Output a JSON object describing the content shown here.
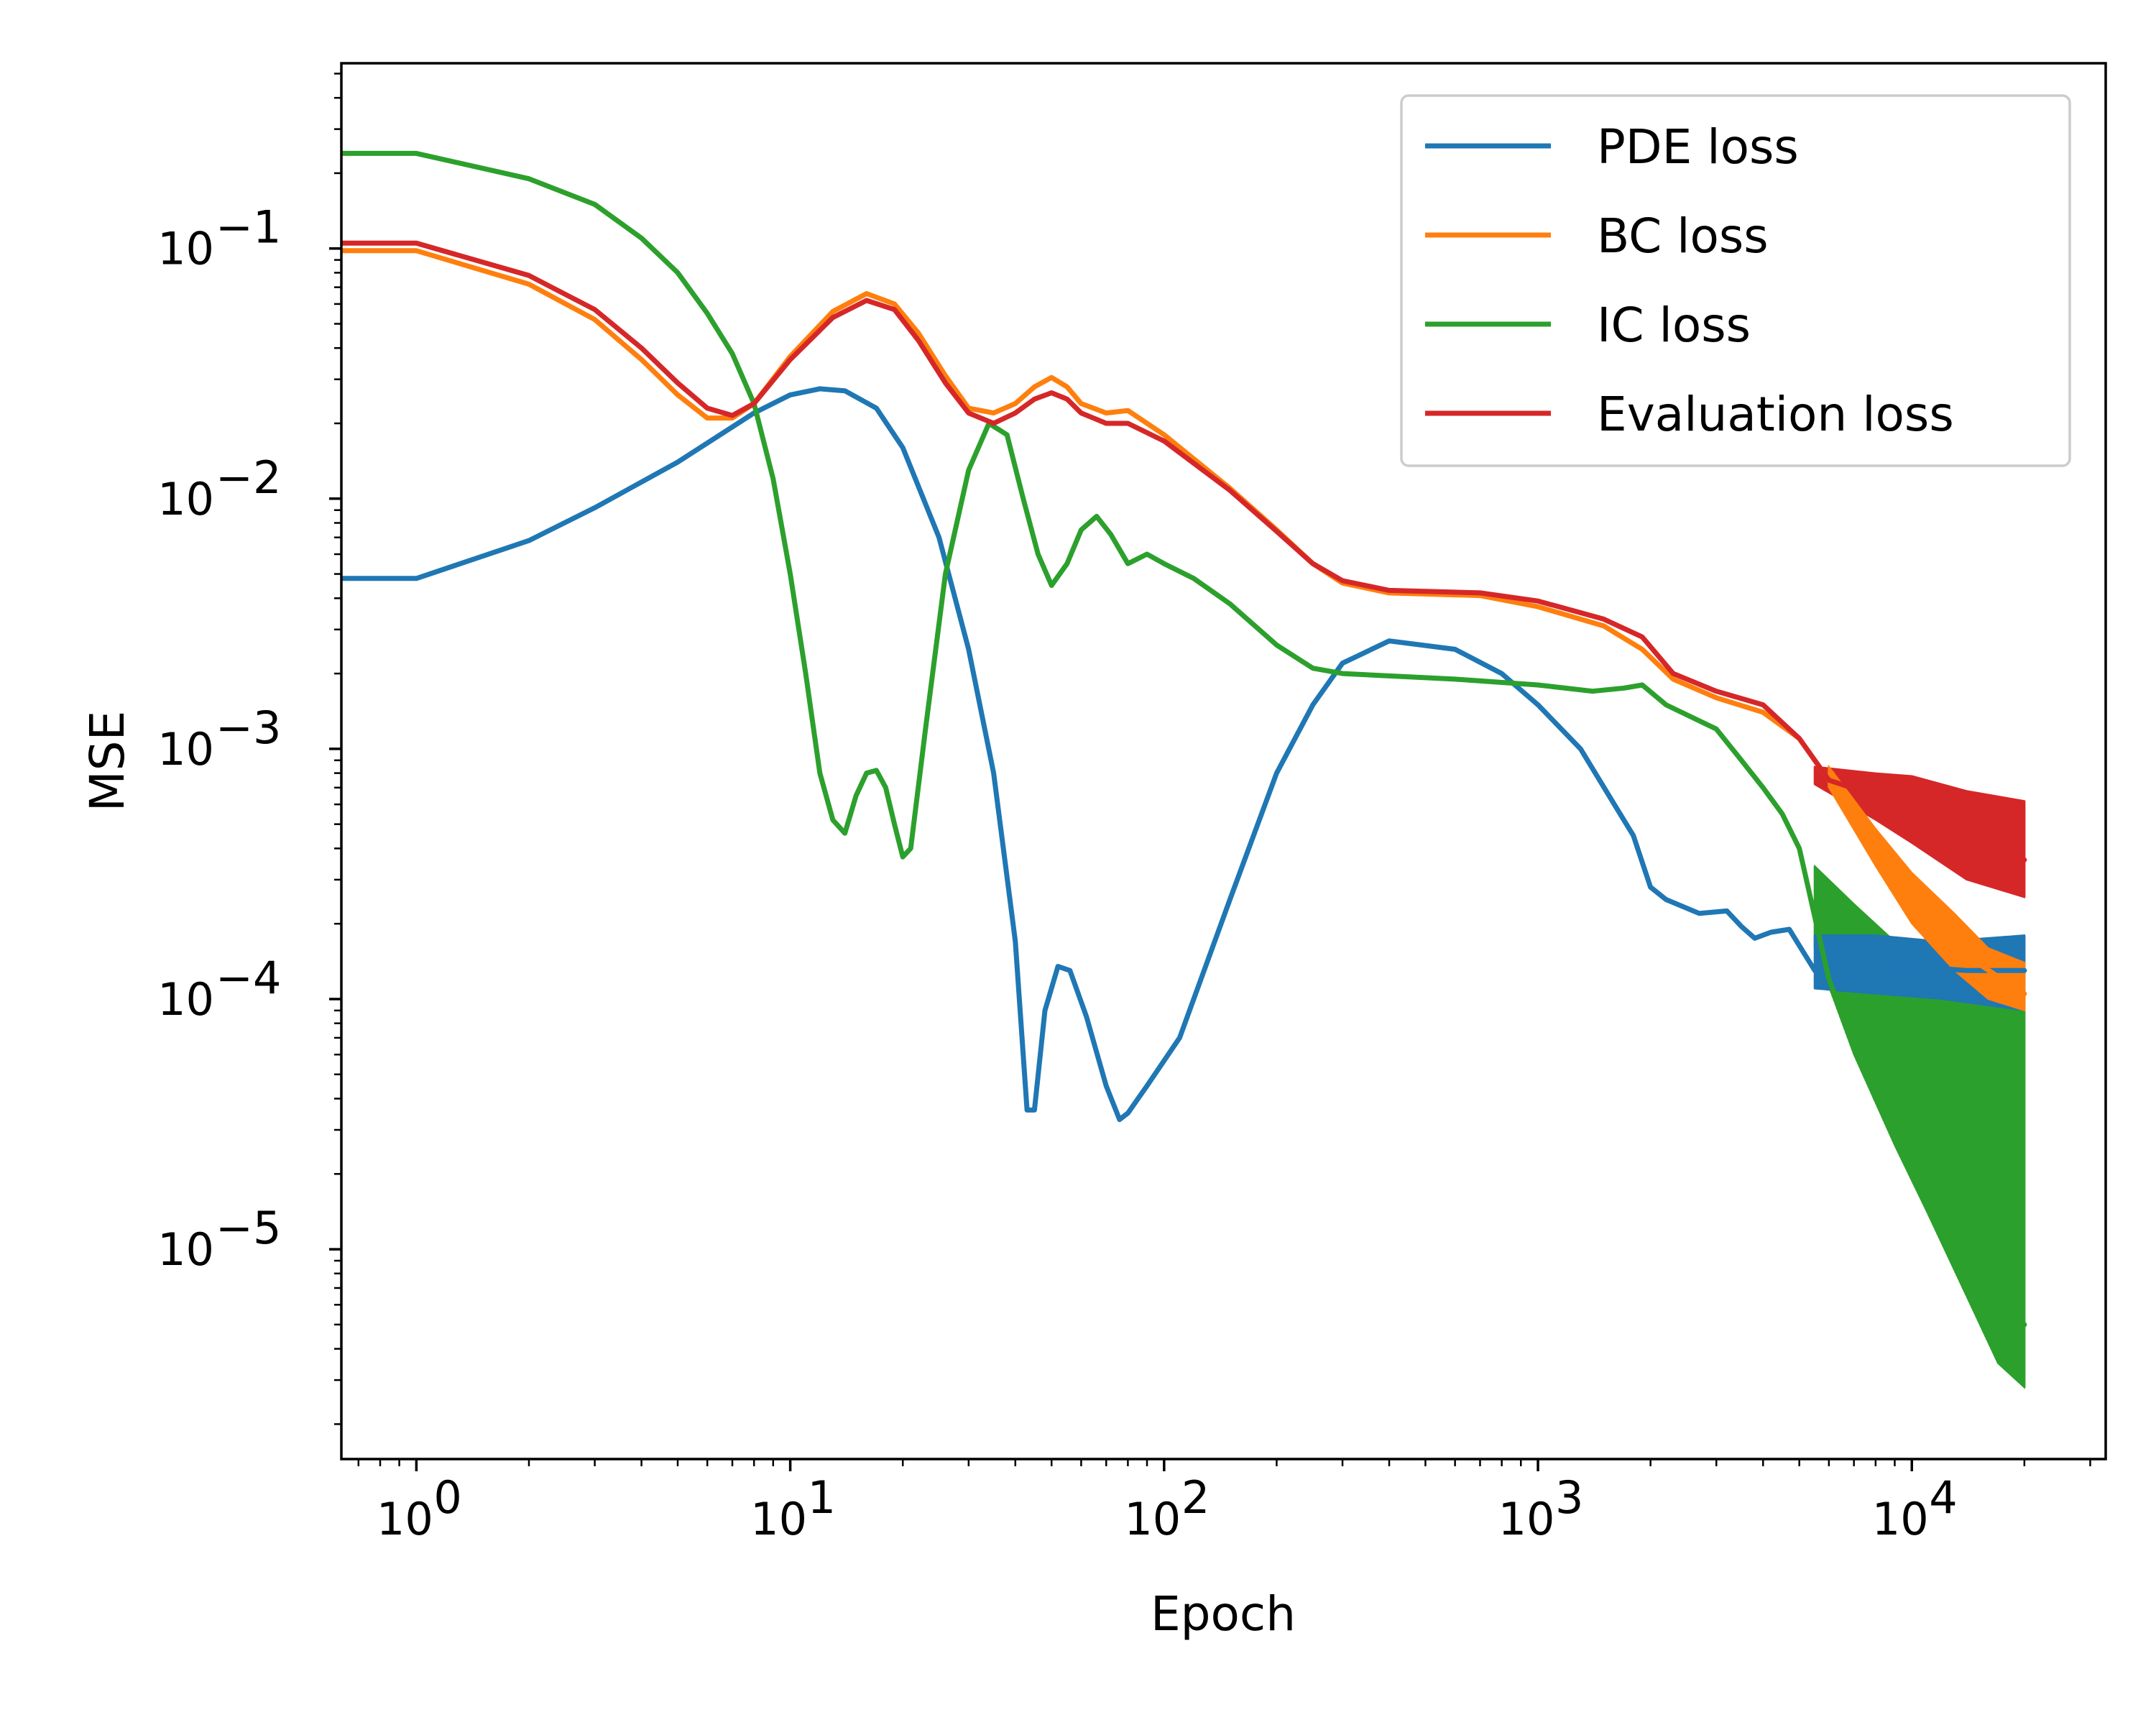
{
  "chart_data": {
    "type": "line",
    "title": "",
    "xlabel": "Epoch",
    "ylabel": "MSE",
    "xscale": "log",
    "yscale": "log",
    "xlim": [
      0.63,
      33000
    ],
    "ylim": [
      1.45e-06,
      0.55
    ],
    "grid": false,
    "legend_position": "top-right",
    "x_ticks": [
      {
        "value": 1,
        "base": "10",
        "exp": "0"
      },
      {
        "value": 10,
        "base": "10",
        "exp": "1"
      },
      {
        "value": 100,
        "base": "10",
        "exp": "2"
      },
      {
        "value": 1000,
        "base": "10",
        "exp": "3"
      },
      {
        "value": 10000,
        "base": "10",
        "exp": "4"
      }
    ],
    "y_ticks": [
      {
        "value": 0.1,
        "base": "10",
        "exp": "−1"
      },
      {
        "value": 0.01,
        "base": "10",
        "exp": "−2"
      },
      {
        "value": 0.001,
        "base": "10",
        "exp": "−3"
      },
      {
        "value": 0.0001,
        "base": "10",
        "exp": "−4"
      },
      {
        "value": 1e-05,
        "base": "10",
        "exp": "−5"
      }
    ],
    "series": [
      {
        "name": "PDE loss",
        "color": "#1f77b4",
        "points": [
          [
            0.63,
            0.0048
          ],
          [
            1,
            0.0048
          ],
          [
            2,
            0.0068
          ],
          [
            3,
            0.0092
          ],
          [
            5,
            0.014
          ],
          [
            8,
            0.022
          ],
          [
            10,
            0.026
          ],
          [
            12,
            0.0275
          ],
          [
            14,
            0.027
          ],
          [
            17,
            0.023
          ],
          [
            20,
            0.016
          ],
          [
            25,
            0.007
          ],
          [
            30,
            0.0025
          ],
          [
            35,
            0.0008
          ],
          [
            40,
            0.00017
          ],
          [
            43,
            3.6e-05
          ],
          [
            45,
            3.6e-05
          ],
          [
            48,
            9e-05
          ],
          [
            52,
            0.000135
          ],
          [
            56,
            0.00013
          ],
          [
            62,
            8.5e-05
          ],
          [
            70,
            4.5e-05
          ],
          [
            76,
            3.3e-05
          ],
          [
            80,
            3.5e-05
          ],
          [
            90,
            4.5e-05
          ],
          [
            110,
            7e-05
          ],
          [
            150,
            0.00025
          ],
          [
            200,
            0.0008
          ],
          [
            250,
            0.0015
          ],
          [
            300,
            0.0022
          ],
          [
            400,
            0.0027
          ],
          [
            600,
            0.0025
          ],
          [
            800,
            0.002
          ],
          [
            1000,
            0.0015
          ],
          [
            1300,
            0.001
          ],
          [
            1600,
            0.0006
          ],
          [
            1800,
            0.00045
          ],
          [
            2000,
            0.00028
          ],
          [
            2200,
            0.00025
          ],
          [
            2700,
            0.00022
          ],
          [
            3200,
            0.000225
          ],
          [
            3500,
            0.000195
          ],
          [
            3800,
            0.000175
          ],
          [
            4200,
            0.000185
          ],
          [
            4700,
            0.00019
          ],
          [
            5500,
            0.00013
          ],
          [
            6500,
            0.000145
          ],
          [
            8000,
            0.00014
          ],
          [
            10000,
            0.000135
          ],
          [
            14000,
            0.00013
          ],
          [
            20000,
            0.00013
          ]
        ],
        "band_start": 5500,
        "band_upper": [
          [
            5500,
            0.00018
          ],
          [
            8000,
            0.00018
          ],
          [
            12000,
            0.00017
          ],
          [
            20000,
            0.00018
          ]
        ],
        "band_lower": [
          [
            5500,
            0.00011
          ],
          [
            8000,
            0.000105
          ],
          [
            12000,
            0.0001
          ],
          [
            20000,
            9e-05
          ]
        ]
      },
      {
        "name": "BC loss",
        "color": "#ff7f0e",
        "points": [
          [
            0.63,
            0.098
          ],
          [
            1,
            0.098
          ],
          [
            2,
            0.072
          ],
          [
            3,
            0.052
          ],
          [
            4,
            0.036
          ],
          [
            5,
            0.026
          ],
          [
            6,
            0.021
          ],
          [
            7,
            0.021
          ],
          [
            8,
            0.024
          ],
          [
            10,
            0.037
          ],
          [
            13,
            0.056
          ],
          [
            16,
            0.066
          ],
          [
            19,
            0.06
          ],
          [
            22,
            0.046
          ],
          [
            26,
            0.031
          ],
          [
            30,
            0.023
          ],
          [
            35,
            0.022
          ],
          [
            40,
            0.024
          ],
          [
            45,
            0.028
          ],
          [
            50,
            0.0305
          ],
          [
            55,
            0.028
          ],
          [
            60,
            0.024
          ],
          [
            70,
            0.022
          ],
          [
            80,
            0.0225
          ],
          [
            100,
            0.018
          ],
          [
            150,
            0.011
          ],
          [
            200,
            0.0075
          ],
          [
            250,
            0.0055
          ],
          [
            300,
            0.0046
          ],
          [
            400,
            0.0042
          ],
          [
            700,
            0.0041
          ],
          [
            1000,
            0.0037
          ],
          [
            1500,
            0.0031
          ],
          [
            1900,
            0.0025
          ],
          [
            2300,
            0.0019
          ],
          [
            3000,
            0.0016
          ],
          [
            4000,
            0.0014
          ],
          [
            5000,
            0.0011
          ],
          [
            6000,
            0.00075
          ],
          [
            8000,
            0.0004
          ],
          [
            10000,
            0.00025
          ],
          [
            13000,
            0.00016
          ],
          [
            20000,
            0.000105
          ]
        ],
        "band_start": 6000,
        "band_upper": [
          [
            6000,
            0.00085
          ],
          [
            8000,
            0.00048
          ],
          [
            10000,
            0.00032
          ],
          [
            13000,
            0.00022
          ],
          [
            16000,
            0.00016
          ],
          [
            20000,
            0.00014
          ]
        ],
        "band_lower": [
          [
            6000,
            0.0007
          ],
          [
            8000,
            0.00034
          ],
          [
            10000,
            0.0002
          ],
          [
            13000,
            0.00013
          ],
          [
            16000,
            0.0001
          ],
          [
            20000,
            9e-05
          ]
        ]
      },
      {
        "name": "IC loss",
        "color": "#2ca02c",
        "points": [
          [
            0.63,
            0.24
          ],
          [
            1,
            0.24
          ],
          [
            2,
            0.19
          ],
          [
            3,
            0.15
          ],
          [
            4,
            0.11
          ],
          [
            5,
            0.08
          ],
          [
            6,
            0.055
          ],
          [
            7,
            0.038
          ],
          [
            8,
            0.024
          ],
          [
            9,
            0.012
          ],
          [
            10,
            0.005
          ],
          [
            11,
            0.002
          ],
          [
            12,
            0.0008
          ],
          [
            13,
            0.00052
          ],
          [
            14,
            0.00046
          ],
          [
            15,
            0.00065
          ],
          [
            16,
            0.0008
          ],
          [
            17,
            0.00082
          ],
          [
            18,
            0.0007
          ],
          [
            19,
            0.0005
          ],
          [
            20,
            0.00037
          ],
          [
            21,
            0.0004
          ],
          [
            23,
            0.0012
          ],
          [
            26,
            0.005
          ],
          [
            30,
            0.013
          ],
          [
            34,
            0.02
          ],
          [
            38,
            0.018
          ],
          [
            42,
            0.01
          ],
          [
            46,
            0.006
          ],
          [
            50,
            0.0045
          ],
          [
            55,
            0.0055
          ],
          [
            60,
            0.0075
          ],
          [
            66,
            0.0085
          ],
          [
            72,
            0.0072
          ],
          [
            80,
            0.0055
          ],
          [
            90,
            0.006
          ],
          [
            100,
            0.0055
          ],
          [
            120,
            0.0048
          ],
          [
            150,
            0.0038
          ],
          [
            200,
            0.0026
          ],
          [
            250,
            0.0021
          ],
          [
            300,
            0.002
          ],
          [
            600,
            0.0019
          ],
          [
            1000,
            0.0018
          ],
          [
            1400,
            0.0017
          ],
          [
            1700,
            0.00175
          ],
          [
            1900,
            0.0018
          ],
          [
            2200,
            0.0015
          ],
          [
            3000,
            0.0012
          ],
          [
            3500,
            0.0009
          ],
          [
            4000,
            0.0007
          ],
          [
            4500,
            0.00055
          ],
          [
            5000,
            0.0004
          ],
          [
            6000,
            0.00012
          ],
          [
            8000,
            4e-05
          ],
          [
            10000,
            2.2e-05
          ],
          [
            13000,
            1e-05
          ],
          [
            16000,
            6.5e-06
          ],
          [
            20000,
            5e-06
          ]
        ],
        "band_start": 5500,
        "band_upper": [
          [
            5500,
            0.00034
          ],
          [
            7000,
            0.00024
          ],
          [
            9000,
            0.00017
          ],
          [
            11000,
            0.00013
          ],
          [
            14000,
            0.000115
          ],
          [
            17000,
            0.00011
          ],
          [
            20000,
            0.00011
          ]
        ],
        "band_lower": [
          [
            5500,
            0.00016
          ],
          [
            7000,
            6e-05
          ],
          [
            9000,
            2.6e-05
          ],
          [
            11000,
            1.4e-05
          ],
          [
            14000,
            6.5e-06
          ],
          [
            17000,
            3.5e-06
          ],
          [
            20000,
            2.8e-06
          ]
        ]
      },
      {
        "name": "Evaluation loss",
        "color": "#d62728",
        "points": [
          [
            0.63,
            0.105
          ],
          [
            1,
            0.105
          ],
          [
            2,
            0.078
          ],
          [
            3,
            0.057
          ],
          [
            4,
            0.04
          ],
          [
            5,
            0.029
          ],
          [
            6,
            0.023
          ],
          [
            7,
            0.0215
          ],
          [
            8,
            0.024
          ],
          [
            10,
            0.036
          ],
          [
            13,
            0.053
          ],
          [
            16,
            0.062
          ],
          [
            19,
            0.057
          ],
          [
            22,
            0.043
          ],
          [
            26,
            0.029
          ],
          [
            30,
            0.022
          ],
          [
            35,
            0.02
          ],
          [
            40,
            0.022
          ],
          [
            45,
            0.025
          ],
          [
            50,
            0.0265
          ],
          [
            55,
            0.025
          ],
          [
            60,
            0.022
          ],
          [
            70,
            0.02
          ],
          [
            80,
            0.02
          ],
          [
            100,
            0.017
          ],
          [
            150,
            0.0108
          ],
          [
            200,
            0.0074
          ],
          [
            250,
            0.0055
          ],
          [
            300,
            0.0047
          ],
          [
            400,
            0.0043
          ],
          [
            700,
            0.0042
          ],
          [
            1000,
            0.0039
          ],
          [
            1500,
            0.0033
          ],
          [
            1900,
            0.0028
          ],
          [
            2300,
            0.002
          ],
          [
            3000,
            0.0017
          ],
          [
            4000,
            0.0015
          ],
          [
            5000,
            0.0011
          ],
          [
            6000,
            0.00075
          ],
          [
            8000,
            0.00065
          ],
          [
            10000,
            0.00055
          ],
          [
            14000,
            0.00045
          ],
          [
            20000,
            0.00036
          ]
        ],
        "band_start": 5500,
        "band_upper": [
          [
            5500,
            0.00085
          ],
          [
            8000,
            0.0008
          ],
          [
            10000,
            0.00078
          ],
          [
            14000,
            0.00068
          ],
          [
            20000,
            0.00062
          ]
        ],
        "band_lower": [
          [
            5500,
            0.00072
          ],
          [
            8000,
            0.00052
          ],
          [
            10000,
            0.00042
          ],
          [
            14000,
            0.0003
          ],
          [
            20000,
            0.000255
          ]
        ]
      }
    ]
  }
}
